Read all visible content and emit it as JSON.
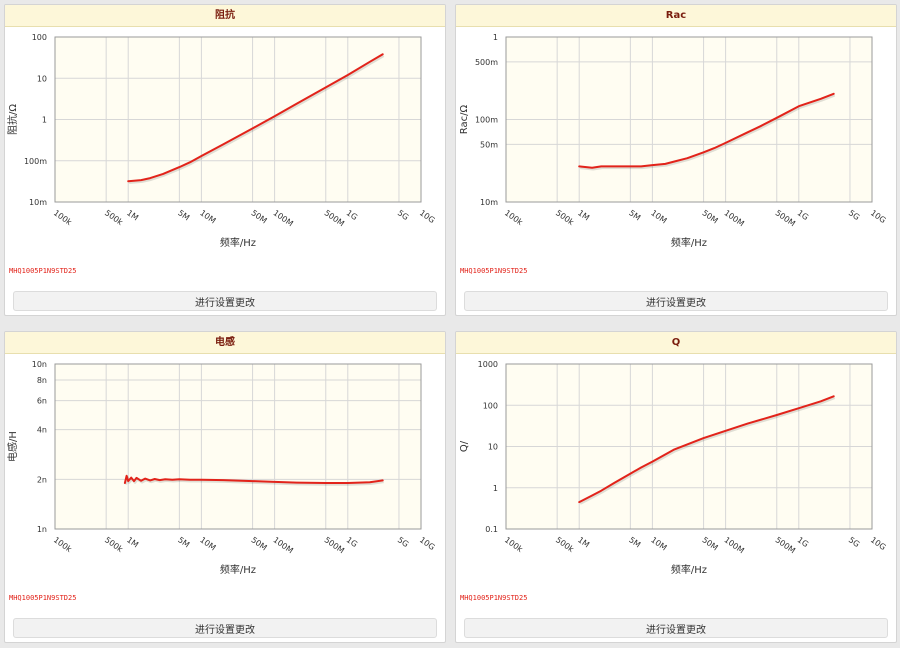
{
  "button_label": "进行设置更改",
  "part_number": "MHQ1005P1N9STD25",
  "colors": {
    "series": "#e2231a",
    "header_bg": "#fdf7d9",
    "title": "#7a1d0e"
  },
  "chart_data": [
    {
      "type": "line",
      "title": "阻抗",
      "xlabel": "频率/Hz",
      "ylabel": "阻抗/Ω",
      "xscale": "log",
      "yscale": "log",
      "xlim": [
        100000,
        10000000000
      ],
      "ylim": [
        0.01,
        100
      ],
      "x_ticks": [
        100000,
        500000,
        1000000,
        5000000,
        10000000,
        50000000,
        100000000,
        500000000,
        1000000000,
        5000000000,
        10000000000
      ],
      "x_tick_labels": [
        "100k",
        "500k",
        "1M",
        "5M",
        "10M",
        "50M",
        "100M",
        "500M",
        "1G",
        "5G",
        "10G"
      ],
      "y_ticks": [
        0.01,
        0.1,
        1,
        10,
        100
      ],
      "y_tick_labels": [
        "10m",
        "100m",
        "1",
        "10",
        "100"
      ],
      "grid": true,
      "series": [
        {
          "x": [
            1000000,
            1500000,
            2000000,
            3000000,
            5000000,
            7000000,
            10000000,
            20000000,
            50000000,
            100000000,
            200000000,
            500000000,
            1000000000,
            2000000000,
            3000000000
          ],
          "y": [
            0.032,
            0.034,
            0.038,
            0.048,
            0.07,
            0.092,
            0.13,
            0.25,
            0.61,
            1.2,
            2.4,
            6.0,
            12,
            25,
            38
          ]
        }
      ]
    },
    {
      "type": "line",
      "title": "Rac",
      "xlabel": "频率/Hz",
      "ylabel": "Rac/Ω",
      "xscale": "log",
      "yscale": "log",
      "xlim": [
        100000,
        10000000000
      ],
      "ylim": [
        0.01,
        1
      ],
      "x_ticks": [
        100000,
        500000,
        1000000,
        5000000,
        10000000,
        50000000,
        100000000,
        500000000,
        1000000000,
        5000000000,
        10000000000
      ],
      "x_tick_labels": [
        "100k",
        "500k",
        "1M",
        "5M",
        "10M",
        "50M",
        "100M",
        "500M",
        "1G",
        "5G",
        "10G"
      ],
      "y_ticks": [
        0.01,
        0.05,
        0.1,
        0.5,
        1
      ],
      "y_tick_labels": [
        "10m",
        "50m",
        "100m",
        "500m",
        "1"
      ],
      "grid": true,
      "series": [
        {
          "x": [
            1000000,
            1500000,
            2000000,
            3000000,
            5000000,
            7000000,
            10000000,
            15000000,
            20000000,
            30000000,
            50000000,
            70000000,
            100000000,
            200000000,
            300000000,
            500000000,
            1000000000,
            2000000000,
            3000000000
          ],
          "y": [
            0.027,
            0.026,
            0.027,
            0.027,
            0.027,
            0.027,
            0.028,
            0.029,
            0.031,
            0.034,
            0.04,
            0.045,
            0.052,
            0.07,
            0.083,
            0.105,
            0.145,
            0.178,
            0.205
          ]
        }
      ]
    },
    {
      "type": "line",
      "title": "电感",
      "xlabel": "频率/Hz",
      "ylabel": "电感/H",
      "xscale": "log",
      "yscale": "log",
      "xlim": [
        100000,
        10000000000
      ],
      "ylim": [
        1e-09,
        1e-08
      ],
      "x_ticks": [
        100000,
        500000,
        1000000,
        5000000,
        10000000,
        50000000,
        100000000,
        500000000,
        1000000000,
        5000000000,
        10000000000
      ],
      "x_tick_labels": [
        "100k",
        "500k",
        "1M",
        "5M",
        "10M",
        "50M",
        "100M",
        "500M",
        "1G",
        "5G",
        "10G"
      ],
      "y_ticks": [
        1e-09,
        2e-09,
        4e-09,
        6e-09,
        8e-09,
        1e-08
      ],
      "y_tick_labels": [
        "1n",
        "2n",
        "4n",
        "6n",
        "8n",
        "10n"
      ],
      "grid": true,
      "series": [
        {
          "x": [
            900000,
            950000,
            1000000,
            1100000,
            1200000,
            1300000,
            1500000,
            1700000,
            2000000,
            2300000,
            2700000,
            3200000,
            4000000,
            5000000,
            7000000,
            10000000,
            20000000,
            50000000,
            100000000,
            200000000,
            500000000,
            1000000000,
            2000000000,
            3000000000
          ],
          "y": [
            1.9e-09,
            2.1e-09,
            1.95e-09,
            2.05e-09,
            1.95e-09,
            2.04e-09,
            1.96e-09,
            2.02e-09,
            1.97e-09,
            2.01e-09,
            1.98e-09,
            2e-09,
            1.99e-09,
            2e-09,
            1.99e-09,
            1.99e-09,
            1.98e-09,
            1.95e-09,
            1.93e-09,
            1.91e-09,
            1.9e-09,
            1.9e-09,
            1.92e-09,
            1.97e-09
          ]
        }
      ]
    },
    {
      "type": "line",
      "title": "Q",
      "xlabel": "频率/Hz",
      "ylabel": "Q/",
      "xscale": "log",
      "yscale": "log",
      "xlim": [
        100000,
        10000000000
      ],
      "ylim": [
        0.1,
        1000
      ],
      "x_ticks": [
        100000,
        500000,
        1000000,
        5000000,
        10000000,
        50000000,
        100000000,
        500000000,
        1000000000,
        5000000000,
        10000000000
      ],
      "x_tick_labels": [
        "100k",
        "500k",
        "1M",
        "5M",
        "10M",
        "50M",
        "100M",
        "500M",
        "1G",
        "5G",
        "10G"
      ],
      "y_ticks": [
        0.1,
        1,
        10,
        100,
        1000
      ],
      "y_tick_labels": [
        "0.1",
        "1",
        "10",
        "100",
        "1000"
      ],
      "grid": true,
      "series": [
        {
          "x": [
            1000000,
            1500000,
            2000000,
            3000000,
            5000000,
            7000000,
            10000000,
            20000000,
            50000000,
            100000000,
            200000000,
            500000000,
            1000000000,
            2000000000,
            3000000000
          ],
          "y": [
            0.45,
            0.65,
            0.85,
            1.3,
            2.2,
            3.1,
            4.3,
            8.5,
            16,
            24,
            36,
            58,
            85,
            125,
            165
          ]
        }
      ]
    }
  ]
}
